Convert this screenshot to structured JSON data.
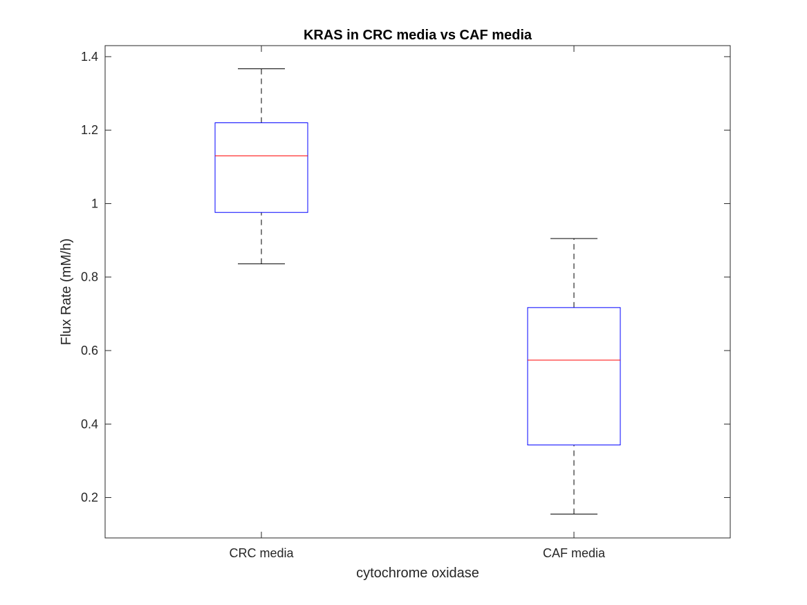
{
  "chart_data": {
    "type": "box",
    "title": "KRAS in CRC media vs CAF media",
    "xlabel": "cytochrome oxidase",
    "ylabel": "Flux Rate (mM/h)",
    "ylim": [
      0.09,
      1.43
    ],
    "yticks": [
      0.2,
      0.4,
      0.6,
      0.8,
      1,
      1.2,
      1.4
    ],
    "ytick_labels": [
      "0.2",
      "0.4",
      "0.6",
      "0.8",
      "1",
      "1.2",
      "1.4"
    ],
    "grid": false,
    "categories": [
      "CRC media",
      "CAF media"
    ],
    "boxes": [
      {
        "category": "CRC media",
        "min": 0.836,
        "q1": 0.976,
        "median": 1.13,
        "q3": 1.22,
        "max": 1.367
      },
      {
        "category": "CAF media",
        "min": 0.155,
        "q1": 0.343,
        "median": 0.574,
        "q3": 0.717,
        "max": 0.905
      }
    ],
    "colors": {
      "box": "#0000ff",
      "median": "#ff0000",
      "whisker": "#555555",
      "axis": "#262626"
    }
  }
}
